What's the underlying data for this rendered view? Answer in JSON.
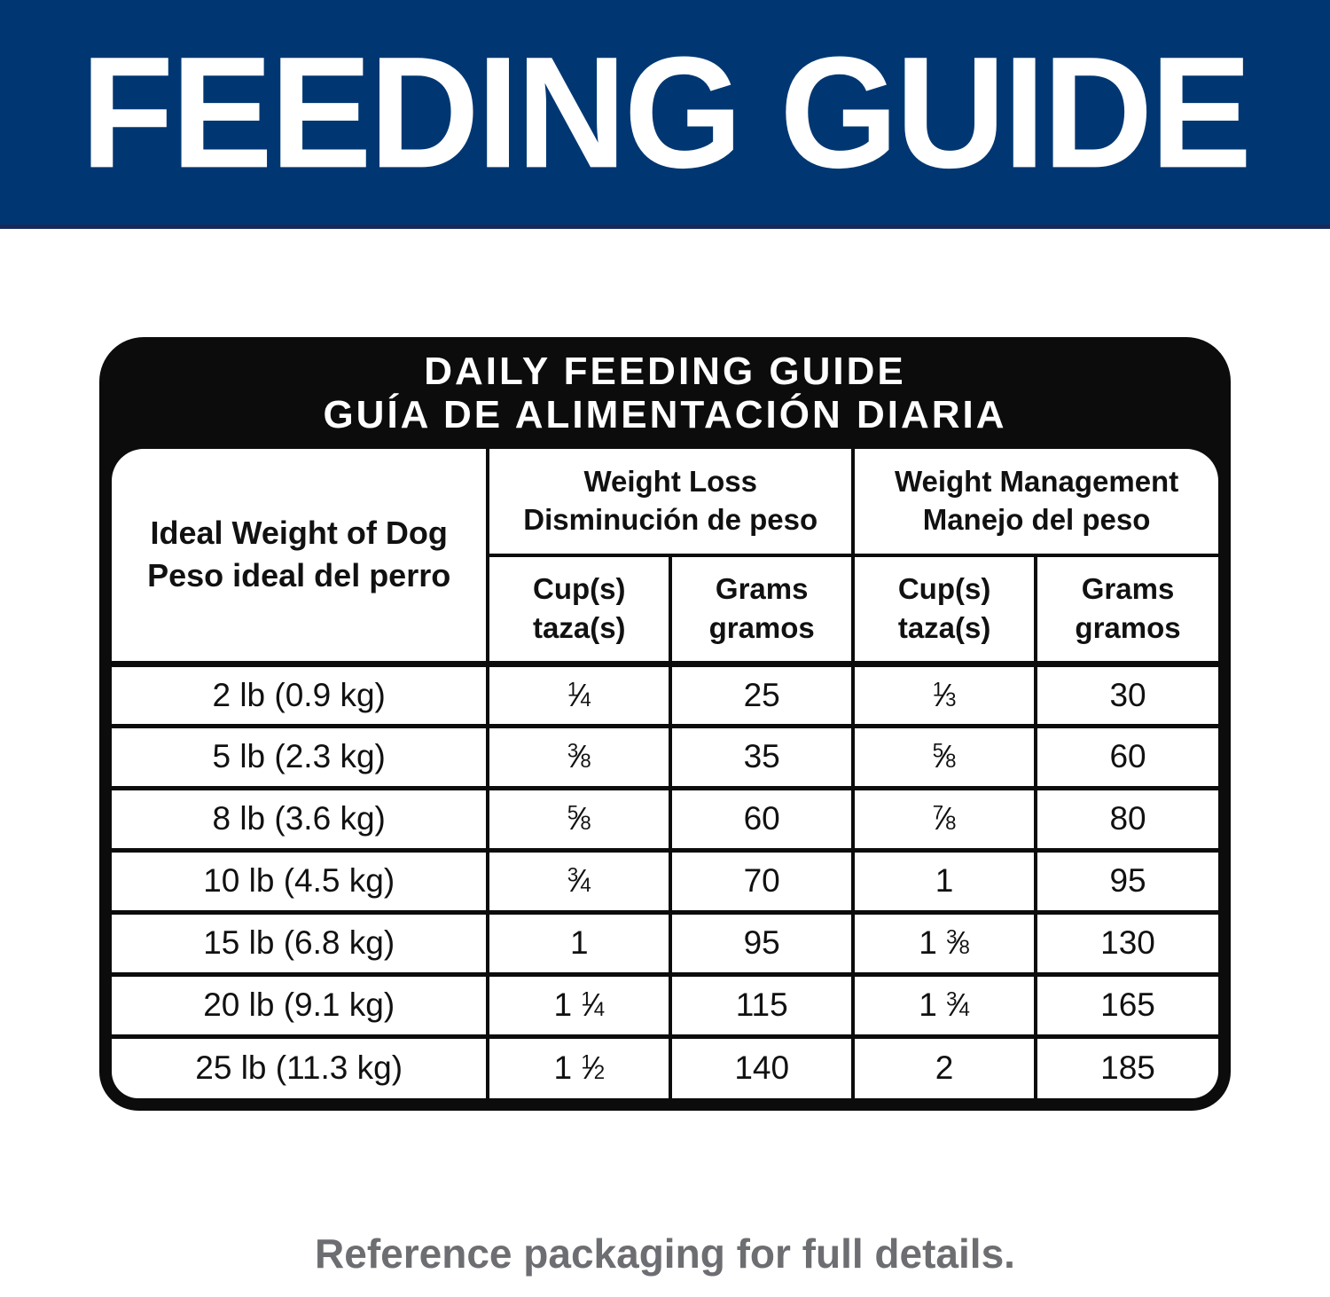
{
  "banner": {
    "title": "FEEDING GUIDE",
    "bg_color": "#003773",
    "text_color": "#ffffff"
  },
  "card": {
    "title_line1": "DAILY FEEDING GUIDE",
    "title_line2": "GUÍA DE ALIMENTACIÓN DIARIA",
    "bg_color": "#0c0c0c"
  },
  "table": {
    "col1_header": [
      "Ideal Weight of Dog",
      "Peso ideal del perro"
    ],
    "group_headers": [
      [
        "Weight Loss",
        "Disminución de peso"
      ],
      [
        "Weight Management",
        "Manejo del peso"
      ]
    ],
    "sub_headers": [
      [
        "Cup(s)",
        "taza(s)"
      ],
      [
        "Grams",
        "gramos"
      ],
      [
        "Cup(s)",
        "taza(s)"
      ],
      [
        "Grams",
        "gramos"
      ]
    ],
    "rows": [
      {
        "weight": "2 lb (0.9 kg)",
        "wl_cups": "1/4",
        "wl_grams": "25",
        "wm_cups": "1/3",
        "wm_grams": "30"
      },
      {
        "weight": "5 lb (2.3 kg)",
        "wl_cups": "3/8",
        "wl_grams": "35",
        "wm_cups": "5/8",
        "wm_grams": "60"
      },
      {
        "weight": "8 lb (3.6 kg)",
        "wl_cups": "5/8",
        "wl_grams": "60",
        "wm_cups": "7/8",
        "wm_grams": "80"
      },
      {
        "weight": "10 lb (4.5 kg)",
        "wl_cups": "3/4",
        "wl_grams": "70",
        "wm_cups": "1",
        "wm_grams": "95"
      },
      {
        "weight": "15 lb (6.8 kg)",
        "wl_cups": "1",
        "wl_grams": "95",
        "wm_cups": "1 3/8",
        "wm_grams": "130"
      },
      {
        "weight": "20 lb (9.1 kg)",
        "wl_cups": "1 1/4",
        "wl_grams": "115",
        "wm_cups": "1 3/4",
        "wm_grams": "165"
      },
      {
        "weight": "25 lb (11.3 kg)",
        "wl_cups": "1 1/2",
        "wl_grams": "140",
        "wm_cups": "2",
        "wm_grams": "185"
      }
    ]
  },
  "footer": {
    "note": "Reference packaging for full details.",
    "text_color": "#6d6e71"
  }
}
